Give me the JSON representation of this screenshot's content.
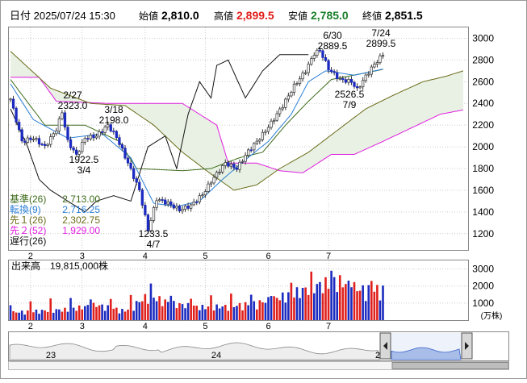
{
  "header": {
    "date": "日付 2025/07/24 15:30",
    "open_label": "始値",
    "open": "2,810.0",
    "high_label": "高値",
    "high": "2,899.5",
    "low_label": "安値",
    "low": "2,785.0",
    "close_label": "終値",
    "close": "2,851.5"
  },
  "colors": {
    "up": "#e0201c",
    "down": "#1c2bbf",
    "kijun": "#3d6b1a",
    "tenkan": "#2a7fd6",
    "senkou1": "#6b6b1a",
    "senkou2": "#e01ee0",
    "chikou": "#111111",
    "cloud": "#e8f1e4",
    "grid": "#cccccc",
    "high_label": "#e0201c"
  },
  "legend": [
    {
      "label": "基準(26)",
      "value": "2,713.00",
      "color": "#3d6b1a"
    },
    {
      "label": "転換(9)",
      "value": "2,716.25",
      "color": "#2a7fd6"
    },
    {
      "label": "先１(26)",
      "value": "2,302.75",
      "color": "#6b6b1a"
    },
    {
      "label": "先２(52)",
      "value": "1,929.00",
      "color": "#e01ee0"
    },
    {
      "label": "遅行(26)",
      "value": "",
      "color": "#111111"
    }
  ],
  "volume_title": "出来高　19,815,000株",
  "volume_unit": "(万株)",
  "navigator": {
    "labels": [
      "23",
      "24",
      "2"
    ]
  },
  "chart_data": [
    {
      "type": "candlestick",
      "title": "",
      "x_tick_labels": [
        "2",
        "3",
        "4",
        "5",
        "6",
        "7"
      ],
      "y_ticks": [
        1200,
        1400,
        1600,
        1800,
        2000,
        2200,
        2400,
        2600,
        2800,
        3000
      ],
      "ylim": [
        1050,
        3100
      ],
      "grid": true,
      "annotations": [
        {
          "date": "2/27",
          "value": "2323.0"
        },
        {
          "date": "3/18",
          "value": "2198.0"
        },
        {
          "date": "3/4",
          "value": "1922.5"
        },
        {
          "date": "4/7",
          "value": "1233.5"
        },
        {
          "date": "6/30",
          "value": "2889.5"
        },
        {
          "date": "7/24",
          "value": "2899.5"
        },
        {
          "date": "7/9",
          "value": "2526.5"
        }
      ],
      "series": [
        {
          "name": "基準(26)",
          "last": 2713.0
        },
        {
          "name": "転換(9)",
          "last": 2716.25
        },
        {
          "name": "先１(26)",
          "last": 2302.75
        },
        {
          "name": "先２(52)",
          "last": 1929.0
        },
        {
          "name": "遅行(26)"
        }
      ],
      "keypoints": [
        {
          "i": 0,
          "v": 2440
        },
        {
          "i": 4,
          "v": 2050
        },
        {
          "i": 8,
          "v": 2080
        },
        {
          "i": 12,
          "v": 2000
        },
        {
          "i": 16,
          "v": 2160
        },
        {
          "i": 18,
          "v": 2323
        },
        {
          "i": 20,
          "v": 2050
        },
        {
          "i": 23,
          "v": 1922.5
        },
        {
          "i": 26,
          "v": 2080
        },
        {
          "i": 30,
          "v": 2100
        },
        {
          "i": 34,
          "v": 2198
        },
        {
          "i": 37,
          "v": 2090
        },
        {
          "i": 41,
          "v": 1850
        },
        {
          "i": 45,
          "v": 1600
        },
        {
          "i": 48,
          "v": 1233.5
        },
        {
          "i": 51,
          "v": 1520
        },
        {
          "i": 55,
          "v": 1480
        },
        {
          "i": 59,
          "v": 1420
        },
        {
          "i": 63,
          "v": 1460
        },
        {
          "i": 67,
          "v": 1560
        },
        {
          "i": 71,
          "v": 1720
        },
        {
          "i": 75,
          "v": 1850
        },
        {
          "i": 79,
          "v": 1800
        },
        {
          "i": 83,
          "v": 1960
        },
        {
          "i": 87,
          "v": 2080
        },
        {
          "i": 91,
          "v": 2220
        },
        {
          "i": 95,
          "v": 2380
        },
        {
          "i": 99,
          "v": 2560
        },
        {
          "i": 103,
          "v": 2700
        },
        {
          "i": 106,
          "v": 2860
        },
        {
          "i": 108,
          "v": 2889.5
        },
        {
          "i": 111,
          "v": 2720
        },
        {
          "i": 115,
          "v": 2620
        },
        {
          "i": 119,
          "v": 2600
        },
        {
          "i": 121,
          "v": 2526.5
        },
        {
          "i": 124,
          "v": 2650
        },
        {
          "i": 127,
          "v": 2760
        },
        {
          "i": 130,
          "v": 2851.5
        }
      ],
      "ichimoku_keypoints": {
        "kijun": [
          [
            0,
            2620
          ],
          [
            12,
            2200
          ],
          [
            26,
            2200
          ],
          [
            38,
            2050
          ],
          [
            44,
            1800
          ],
          [
            60,
            1780
          ],
          [
            70,
            1800
          ],
          [
            80,
            1900
          ],
          [
            88,
            1950
          ],
          [
            96,
            2200
          ],
          [
            104,
            2420
          ],
          [
            112,
            2620
          ],
          [
            130,
            2713
          ]
        ],
        "tenkan": [
          [
            0,
            2580
          ],
          [
            8,
            2250
          ],
          [
            20,
            2080
          ],
          [
            32,
            2120
          ],
          [
            42,
            1900
          ],
          [
            50,
            1480
          ],
          [
            58,
            1450
          ],
          [
            66,
            1500
          ],
          [
            74,
            1700
          ],
          [
            82,
            1880
          ],
          [
            90,
            2050
          ],
          [
            98,
            2300
          ],
          [
            104,
            2600
          ],
          [
            110,
            2700
          ],
          [
            120,
            2660
          ],
          [
            130,
            2716.25
          ]
        ],
        "senkou1": [
          [
            0,
            2880
          ],
          [
            14,
            2540
          ],
          [
            28,
            2400
          ],
          [
            40,
            2380
          ],
          [
            50,
            2200
          ],
          [
            60,
            1950
          ],
          [
            70,
            1750
          ],
          [
            78,
            1600
          ],
          [
            86,
            1650
          ],
          [
            94,
            1800
          ],
          [
            104,
            1950
          ],
          [
            114,
            2150
          ],
          [
            124,
            2350
          ],
          [
            134,
            2480
          ],
          [
            144,
            2600
          ],
          [
            152,
            2650
          ],
          [
            158,
            2700
          ]
        ],
        "senkou2": [
          [
            0,
            2640
          ],
          [
            10,
            2640
          ],
          [
            16,
            2420
          ],
          [
            34,
            2400
          ],
          [
            48,
            2400
          ],
          [
            60,
            2400
          ],
          [
            72,
            2200
          ],
          [
            76,
            1850
          ],
          [
            86,
            1850
          ],
          [
            94,
            1780
          ],
          [
            102,
            1760
          ],
          [
            112,
            1930
          ],
          [
            120,
            1930
          ],
          [
            130,
            2050
          ],
          [
            142,
            2200
          ],
          [
            150,
            2300
          ],
          [
            158,
            2340
          ]
        ],
        "chikou": [
          [
            0,
            2350
          ],
          [
            6,
            2000
          ],
          [
            10,
            1700
          ],
          [
            14,
            1600
          ],
          [
            20,
            1500
          ],
          [
            26,
            1400
          ],
          [
            30,
            1500
          ],
          [
            36,
            1550
          ],
          [
            42,
            1500
          ],
          [
            48,
            2000
          ],
          [
            54,
            2100
          ],
          [
            58,
            1800
          ],
          [
            62,
            2300
          ],
          [
            66,
            2600
          ],
          [
            70,
            2450
          ],
          [
            72,
            2750
          ],
          [
            76,
            2800
          ],
          [
            82,
            2450
          ],
          [
            88,
            2700
          ],
          [
            94,
            2850
          ]
        ]
      }
    },
    {
      "type": "bar",
      "title": "",
      "y_ticks": [
        1000,
        2000,
        3000
      ],
      "ylim": [
        0,
        3500
      ],
      "unit": "(万株)",
      "keypoints": [
        [
          0,
          500
        ],
        [
          10,
          600
        ],
        [
          20,
          700
        ],
        [
          30,
          1000
        ],
        [
          40,
          600
        ],
        [
          48,
          1600
        ],
        [
          56,
          1100
        ],
        [
          66,
          850
        ],
        [
          76,
          900
        ],
        [
          86,
          1100
        ],
        [
          96,
          1600
        ],
        [
          106,
          2200
        ],
        [
          114,
          2600
        ],
        [
          122,
          2000
        ],
        [
          130,
          2000
        ]
      ]
    }
  ]
}
